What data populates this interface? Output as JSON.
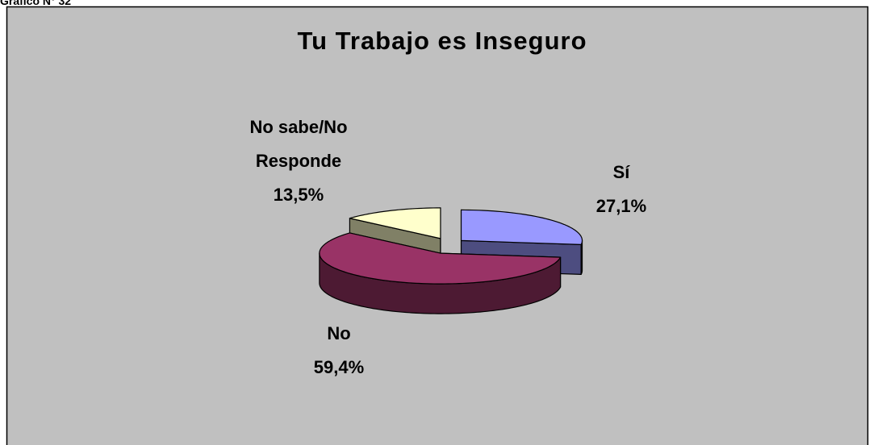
{
  "caption": "Gráfico N° 32",
  "chart_data": {
    "type": "pie3d",
    "title": "Tu Trabajo es Inseguro",
    "categories": [
      "Sí",
      "No",
      "No sabe/No Responde"
    ],
    "values": [
      27.1,
      59.4,
      13.5
    ],
    "value_labels": [
      "27,1%",
      "59,4%",
      "13,5%"
    ],
    "colors": [
      "#9999ff",
      "#993366",
      "#ffffcc"
    ],
    "side_colors": [
      "#4d4d80",
      "#4d1a33",
      "#808066"
    ]
  }
}
